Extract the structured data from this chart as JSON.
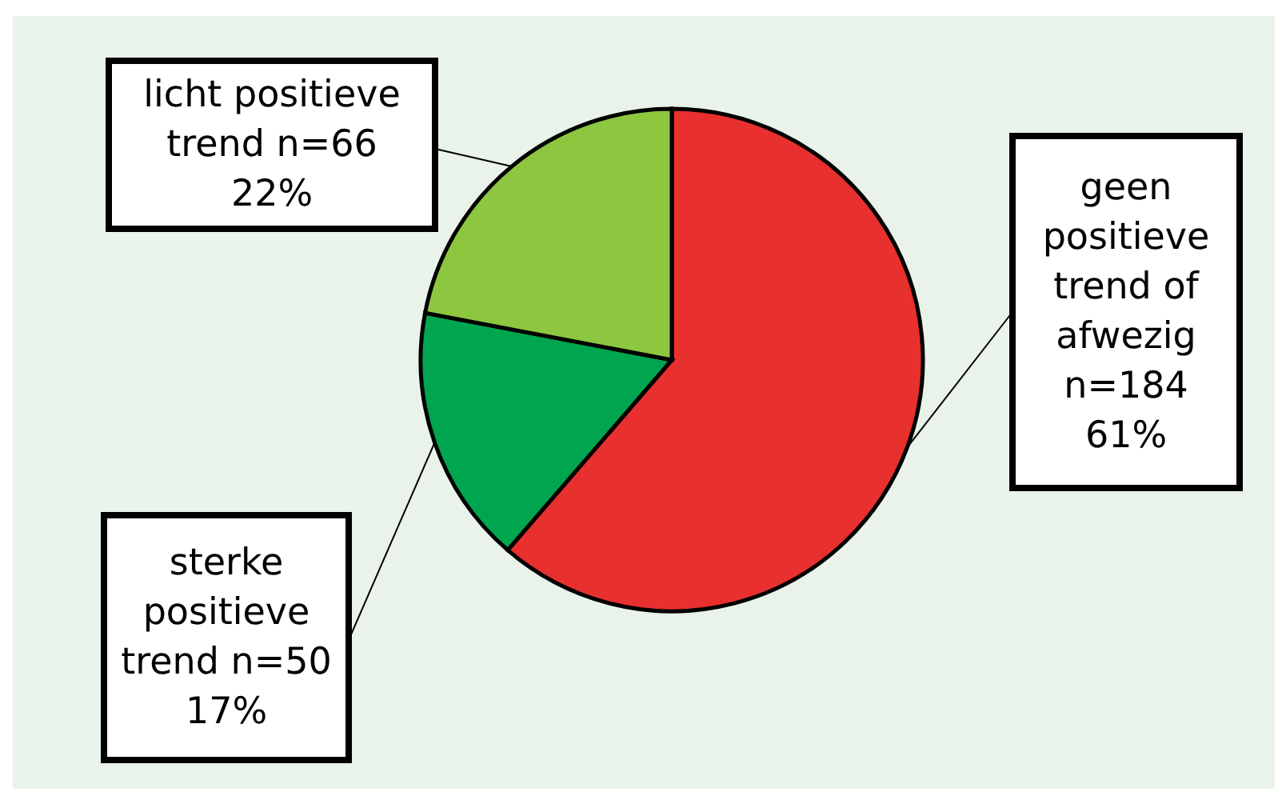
{
  "chart_data": {
    "type": "pie",
    "categories": [
      "geen positieve trend of afwezig",
      "sterke positieve trend",
      "licht positieve trend"
    ],
    "values": [
      184,
      50,
      66
    ],
    "colors": [
      "#e8302f",
      "#00a64f",
      "#8dc63f"
    ],
    "value_labels": [
      "n=184 61%",
      "n=50 17%",
      "n=66 22%"
    ]
  }
}
